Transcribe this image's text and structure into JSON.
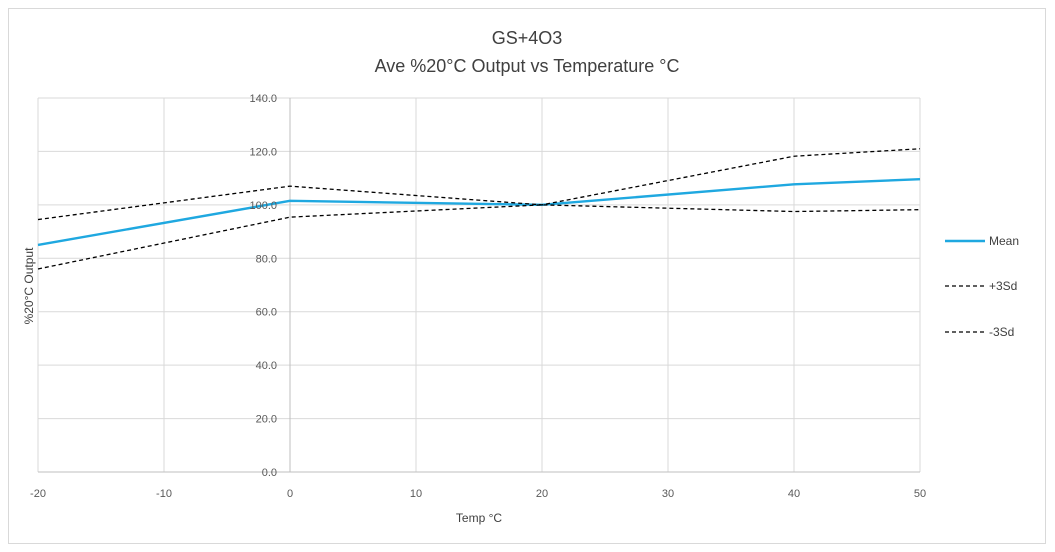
{
  "chart_data": {
    "type": "line",
    "title": "GS+4O3",
    "subtitle": "Ave %20°C Output vs Temperature °C",
    "xlabel": "Temp °C",
    "ylabel": "%20°C Output",
    "x": [
      -20,
      0,
      20,
      40,
      50
    ],
    "xlim": [
      -20,
      50
    ],
    "ylim": [
      0,
      140
    ],
    "x_ticks": [
      "-20",
      "-10",
      "0",
      "10",
      "20",
      "30",
      "40",
      "50"
    ],
    "y_ticks": [
      "0.0",
      "20.0",
      "40.0",
      "60.0",
      "80.0",
      "100.0",
      "120.0",
      "140.0"
    ],
    "grid": true,
    "legend_position": "right",
    "series": [
      {
        "name": "Mean",
        "values": [
          85.0,
          101.5,
          100.0,
          107.7,
          109.6
        ],
        "color": "#1fa8e0",
        "style": "solid"
      },
      {
        "name": "+3Sd",
        "values": [
          94.5,
          107.0,
          100.0,
          118.2,
          121.0
        ],
        "color": "#000000",
        "style": "dashed"
      },
      {
        "name": "-3Sd",
        "values": [
          76.0,
          95.4,
          100.0,
          97.5,
          98.2
        ],
        "color": "#000000",
        "style": "dashed"
      }
    ]
  }
}
